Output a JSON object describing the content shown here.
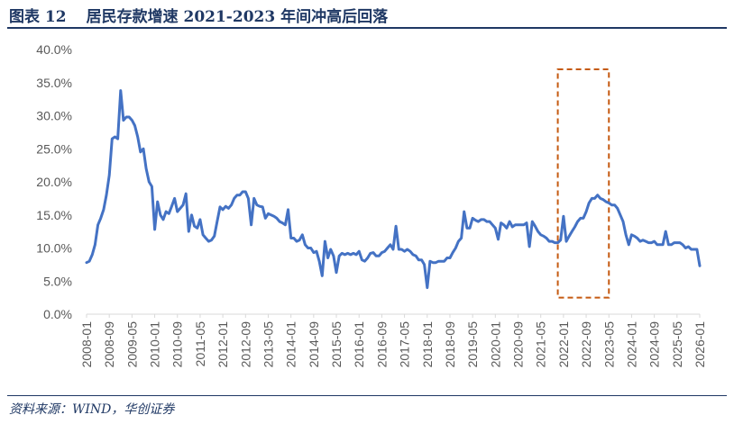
{
  "header": {
    "figure_label": "图表 12",
    "title": "居民存款增速 2021-2023 年间冲高后回落"
  },
  "source": "资料来源：WIND，华创证券",
  "colors": {
    "line": "#4472c4",
    "highlight": "#c55a11",
    "title": "#1f3864",
    "axis": "#d9d9d9"
  },
  "chart_data": {
    "type": "line",
    "title": "",
    "xlabel": "",
    "ylabel": "",
    "ylim": [
      0,
      40
    ],
    "y_ticks": [
      "0.0%",
      "5.0%",
      "10.0%",
      "15.0%",
      "20.0%",
      "25.0%",
      "30.0%",
      "35.0%",
      "40.0%"
    ],
    "x_ticks": [
      "2008-01",
      "2008-09",
      "2009-05",
      "2010-01",
      "2010-09",
      "2011-05",
      "2012-01",
      "2012-09",
      "2013-05",
      "2014-01",
      "2014-09",
      "2015-05",
      "2016-01",
      "2016-09",
      "2017-05",
      "2018-01",
      "2018-09",
      "2019-05",
      "2020-01",
      "2020-09",
      "2021-05",
      "2022-01",
      "2022-09",
      "2023-05",
      "2024-01",
      "2024-09",
      "2025-05",
      "2026-01"
    ],
    "grid": false,
    "legend": "none",
    "highlight_box": {
      "x_start": "2021-11",
      "x_end": "2023-05",
      "y_low": 2.5,
      "y_high": 37
    },
    "series": [
      {
        "name": "",
        "points": [
          [
            "2008-01",
            7.8
          ],
          [
            "2008-02",
            8
          ],
          [
            "2008-03",
            9
          ],
          [
            "2008-04",
            10.5
          ],
          [
            "2008-05",
            13.5
          ],
          [
            "2008-06",
            14.5
          ],
          [
            "2008-07",
            15.8
          ],
          [
            "2008-08",
            18
          ],
          [
            "2008-09",
            21
          ],
          [
            "2008-10",
            26.5
          ],
          [
            "2008-11",
            26.8
          ],
          [
            "2008-12",
            26.5
          ],
          [
            "2009-01",
            33.8
          ],
          [
            "2009-02",
            29.3
          ],
          [
            "2009-03",
            29.8
          ],
          [
            "2009-04",
            29.8
          ],
          [
            "2009-05",
            29.3
          ],
          [
            "2009-06",
            28.5
          ],
          [
            "2009-07",
            26.8
          ],
          [
            "2009-08",
            24.5
          ],
          [
            "2009-09",
            25
          ],
          [
            "2009-10",
            22
          ],
          [
            "2009-11",
            20
          ],
          [
            "2009-12",
            19.3
          ],
          [
            "2010-01",
            12.8
          ],
          [
            "2010-02",
            17
          ],
          [
            "2010-03",
            15
          ],
          [
            "2010-04",
            14.3
          ],
          [
            "2010-05",
            15.5
          ],
          [
            "2010-06",
            15.2
          ],
          [
            "2010-07",
            16.3
          ],
          [
            "2010-08",
            17.5
          ],
          [
            "2010-09",
            15.5
          ],
          [
            "2010-10",
            16
          ],
          [
            "2010-11",
            16.5
          ],
          [
            "2010-12",
            18.2
          ],
          [
            "2011-01",
            12.5
          ],
          [
            "2011-02",
            15
          ],
          [
            "2011-03",
            13.3
          ],
          [
            "2011-04",
            13
          ],
          [
            "2011-05",
            14.3
          ],
          [
            "2011-06",
            12
          ],
          [
            "2011-07",
            11.5
          ],
          [
            "2011-08",
            11
          ],
          [
            "2011-09",
            11.2
          ],
          [
            "2011-10",
            11.8
          ],
          [
            "2011-11",
            14
          ],
          [
            "2011-12",
            16.2
          ],
          [
            "2012-01",
            15.8
          ],
          [
            "2012-02",
            16.3
          ],
          [
            "2012-03",
            16
          ],
          [
            "2012-04",
            16.5
          ],
          [
            "2012-05",
            17.5
          ],
          [
            "2012-06",
            18
          ],
          [
            "2012-07",
            18
          ],
          [
            "2012-08",
            18.5
          ],
          [
            "2012-09",
            18.5
          ],
          [
            "2012-10",
            17.5
          ],
          [
            "2012-11",
            13.5
          ],
          [
            "2012-12",
            17.5
          ],
          [
            "2013-01",
            16.5
          ],
          [
            "2013-02",
            16.3
          ],
          [
            "2013-03",
            16.2
          ],
          [
            "2013-04",
            14.5
          ],
          [
            "2013-05",
            15.2
          ],
          [
            "2013-06",
            15
          ],
          [
            "2013-07",
            14.8
          ],
          [
            "2013-08",
            14.5
          ],
          [
            "2013-09",
            14
          ],
          [
            "2013-10",
            13.8
          ],
          [
            "2013-11",
            13.5
          ],
          [
            "2013-12",
            15.8
          ],
          [
            "2014-01",
            11.5
          ],
          [
            "2014-02",
            11.5
          ],
          [
            "2014-03",
            11
          ],
          [
            "2014-04",
            11.2
          ],
          [
            "2014-05",
            12
          ],
          [
            "2014-06",
            10.5
          ],
          [
            "2014-07",
            10
          ],
          [
            "2014-08",
            10
          ],
          [
            "2014-09",
            9.3
          ],
          [
            "2014-10",
            9.5
          ],
          [
            "2014-11",
            8
          ],
          [
            "2014-12",
            5.8
          ],
          [
            "2015-01",
            11
          ],
          [
            "2015-02",
            8.5
          ],
          [
            "2015-03",
            9.8
          ],
          [
            "2015-04",
            8.8
          ],
          [
            "2015-05",
            6.3
          ],
          [
            "2015-06",
            8.8
          ],
          [
            "2015-07",
            9.2
          ],
          [
            "2015-08",
            9
          ],
          [
            "2015-09",
            9.2
          ],
          [
            "2015-10",
            9
          ],
          [
            "2015-11",
            9.2
          ],
          [
            "2015-12",
            9
          ],
          [
            "2016-01",
            9.5
          ],
          [
            "2016-02",
            8.2
          ],
          [
            "2016-03",
            8
          ],
          [
            "2016-04",
            8.5
          ],
          [
            "2016-05",
            9.2
          ],
          [
            "2016-06",
            9.3
          ],
          [
            "2016-07",
            8.8
          ],
          [
            "2016-08",
            8.8
          ],
          [
            "2016-09",
            9.3
          ],
          [
            "2016-10",
            9.5
          ],
          [
            "2016-11",
            10
          ],
          [
            "2016-12",
            10.5
          ],
          [
            "2017-01",
            9.8
          ],
          [
            "2017-02",
            13.3
          ],
          [
            "2017-03",
            9.8
          ],
          [
            "2017-04",
            9.8
          ],
          [
            "2017-05",
            9.5
          ],
          [
            "2017-06",
            9.8
          ],
          [
            "2017-07",
            9.5
          ],
          [
            "2017-08",
            9
          ],
          [
            "2017-09",
            8.8
          ],
          [
            "2017-10",
            8.2
          ],
          [
            "2017-11",
            8.2
          ],
          [
            "2017-12",
            7.5
          ],
          [
            "2018-01",
            4
          ],
          [
            "2018-02",
            8
          ],
          [
            "2018-03",
            7.8
          ],
          [
            "2018-04",
            7.8
          ],
          [
            "2018-05",
            8
          ],
          [
            "2018-06",
            8
          ],
          [
            "2018-07",
            8
          ],
          [
            "2018-08",
            8.5
          ],
          [
            "2018-09",
            8.5
          ],
          [
            "2018-10",
            9.3
          ],
          [
            "2018-11",
            10
          ],
          [
            "2018-12",
            11
          ],
          [
            "2019-01",
            11.5
          ],
          [
            "2019-02",
            15.5
          ],
          [
            "2019-03",
            13
          ],
          [
            "2019-04",
            13
          ],
          [
            "2019-05",
            14.5
          ],
          [
            "2019-06",
            14.2
          ],
          [
            "2019-07",
            14
          ],
          [
            "2019-08",
            14.3
          ],
          [
            "2019-09",
            14.3
          ],
          [
            "2019-10",
            14
          ],
          [
            "2019-11",
            14
          ],
          [
            "2019-12",
            13.5
          ],
          [
            "2020-01",
            13
          ],
          [
            "2020-02",
            11.3
          ],
          [
            "2020-03",
            13.8
          ],
          [
            "2020-04",
            13.5
          ],
          [
            "2020-05",
            13
          ],
          [
            "2020-06",
            14
          ],
          [
            "2020-07",
            13.2
          ],
          [
            "2020-08",
            13.5
          ],
          [
            "2020-09",
            13.5
          ],
          [
            "2020-10",
            13.5
          ],
          [
            "2020-11",
            13.5
          ],
          [
            "2020-12",
            13.8
          ],
          [
            "2021-01",
            10.2
          ],
          [
            "2021-02",
            14
          ],
          [
            "2021-03",
            13.3
          ],
          [
            "2021-04",
            12.5
          ],
          [
            "2021-05",
            12
          ],
          [
            "2021-06",
            11.8
          ],
          [
            "2021-07",
            11.5
          ],
          [
            "2021-08",
            11
          ],
          [
            "2021-09",
            11
          ],
          [
            "2021-10",
            10.8
          ],
          [
            "2021-11",
            10.8
          ],
          [
            "2021-12",
            11.2
          ],
          [
            "2022-01",
            14.8
          ],
          [
            "2022-02",
            11
          ],
          [
            "2022-03",
            11.8
          ],
          [
            "2022-04",
            12.5
          ],
          [
            "2022-05",
            13.2
          ],
          [
            "2022-06",
            14
          ],
          [
            "2022-07",
            14.5
          ],
          [
            "2022-08",
            14.5
          ],
          [
            "2022-09",
            15.5
          ],
          [
            "2022-10",
            16.8
          ],
          [
            "2022-11",
            17.5
          ],
          [
            "2022-12",
            17.5
          ],
          [
            "2023-01",
            18
          ],
          [
            "2023-02",
            17.5
          ],
          [
            "2023-03",
            17.3
          ],
          [
            "2023-04",
            17
          ],
          [
            "2023-05",
            16.8
          ],
          [
            "2023-06",
            16.5
          ],
          [
            "2023-07",
            16.5
          ],
          [
            "2023-08",
            16
          ],
          [
            "2023-09",
            15
          ],
          [
            "2023-10",
            14
          ],
          [
            "2023-11",
            12
          ],
          [
            "2023-12",
            10.5
          ],
          [
            "2024-01",
            12
          ],
          [
            "2024-02",
            11.8
          ],
          [
            "2024-03",
            11.5
          ],
          [
            "2024-04",
            11
          ],
          [
            "2024-05",
            11.2
          ],
          [
            "2024-06",
            11
          ],
          [
            "2024-07",
            10.8
          ],
          [
            "2024-08",
            10.8
          ],
          [
            "2024-09",
            11
          ],
          [
            "2024-10",
            10.5
          ],
          [
            "2024-11",
            10.5
          ],
          [
            "2024-12",
            10.5
          ],
          [
            "2025-01",
            12.5
          ],
          [
            "2025-02",
            10.5
          ],
          [
            "2025-03",
            10.5
          ],
          [
            "2025-04",
            10.8
          ],
          [
            "2025-05",
            10.8
          ],
          [
            "2025-06",
            10.8
          ],
          [
            "2025-07",
            10.5
          ],
          [
            "2025-08",
            10
          ],
          [
            "2025-09",
            10.2
          ],
          [
            "2025-10",
            9.8
          ],
          [
            "2025-11",
            9.8
          ],
          [
            "2025-12",
            9.8
          ],
          [
            "2026-01",
            7.3
          ]
        ]
      }
    ]
  }
}
